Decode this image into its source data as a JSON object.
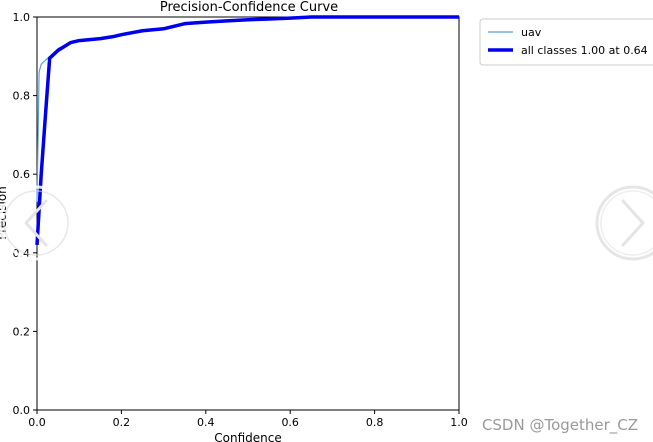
{
  "chart_data": {
    "type": "line",
    "title": "Precision-Confidence Curve",
    "xlabel": "Confidence",
    "ylabel": "Precision",
    "xlim": [
      0.0,
      1.0
    ],
    "ylim": [
      0.0,
      1.0
    ],
    "x_ticks": [
      "0.0",
      "0.2",
      "0.4",
      "0.6",
      "0.8",
      "1.0"
    ],
    "y_ticks": [
      "0.0",
      "0.2",
      "0.4",
      "0.6",
      "0.8",
      "1.0"
    ],
    "grid": false,
    "legend_position": "outside-right-top",
    "series": [
      {
        "name": "uav",
        "color": "#5b9fd4",
        "x": [
          0.0,
          0.005,
          0.01,
          0.02,
          0.03,
          0.05,
          0.08,
          0.1,
          0.15,
          0.18,
          0.2,
          0.25,
          0.3,
          0.35,
          0.4,
          0.45,
          0.5,
          0.55,
          0.6,
          0.65,
          0.7,
          0.8,
          0.9,
          1.0
        ],
        "y": [
          0.53,
          0.86,
          0.88,
          0.89,
          0.9,
          0.92,
          0.935,
          0.94,
          0.945,
          0.95,
          0.955,
          0.965,
          0.97,
          0.983,
          0.987,
          0.99,
          0.993,
          0.995,
          0.997,
          1.0,
          1.0,
          1.0,
          1.0,
          1.0
        ]
      },
      {
        "name": "all classes 1.00 at 0.64",
        "color": "#0000ee",
        "x": [
          0.0,
          0.005,
          0.01,
          0.02,
          0.03,
          0.05,
          0.08,
          0.1,
          0.15,
          0.18,
          0.2,
          0.25,
          0.3,
          0.35,
          0.4,
          0.45,
          0.5,
          0.55,
          0.6,
          0.65,
          0.7,
          0.8,
          0.9,
          1.0
        ],
        "y": [
          0.42,
          0.51,
          0.6,
          0.75,
          0.895,
          0.915,
          0.935,
          0.94,
          0.945,
          0.95,
          0.955,
          0.965,
          0.97,
          0.983,
          0.987,
          0.99,
          0.993,
          0.995,
          0.997,
          1.0,
          1.0,
          1.0,
          1.0,
          1.0
        ]
      }
    ]
  },
  "watermark": {
    "text": "CSDN @Together_CZ"
  },
  "nav_arrows": {
    "left_icon": "chevron-left-icon",
    "right_icon": "chevron-right-icon"
  }
}
